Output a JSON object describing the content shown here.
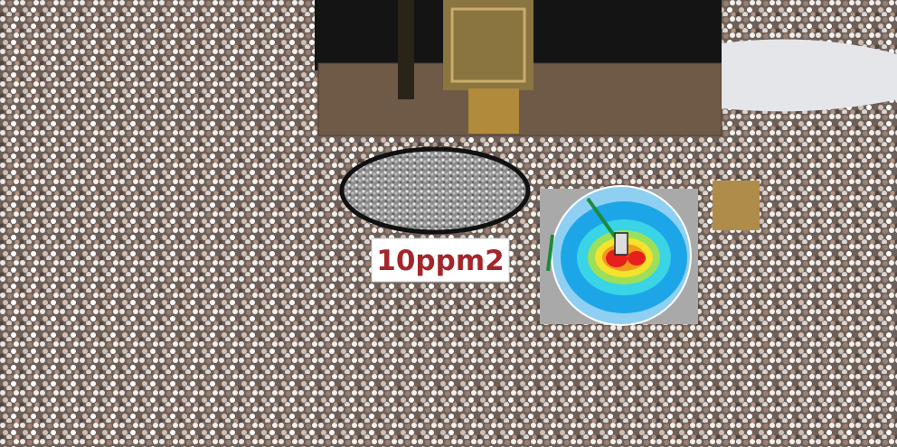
{
  "label": "10ppm2"
}
